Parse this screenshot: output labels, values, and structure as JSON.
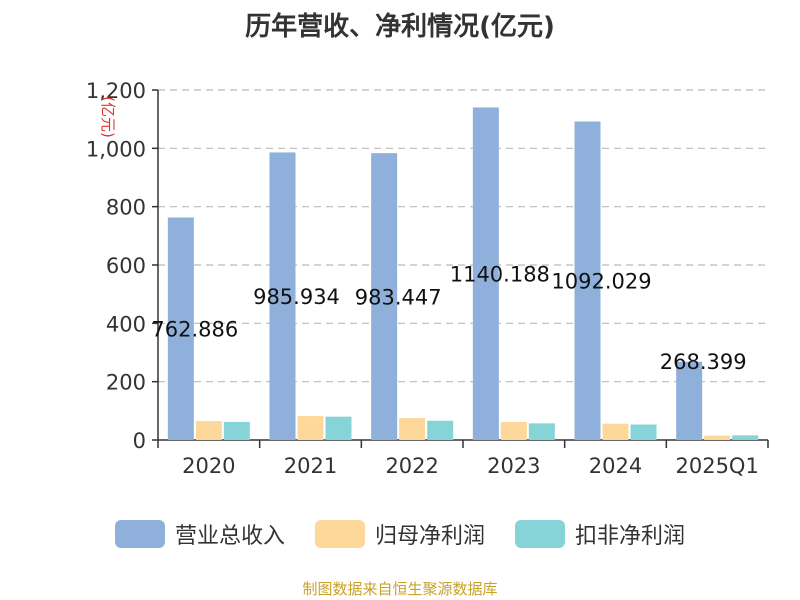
{
  "title": "历年营收、净利情况(亿元)",
  "source_note": "制图数据来自恒生聚源数据库",
  "colors": {
    "revenue": "#8eb0db",
    "net_profit_parent": "#fdd89a",
    "deducted_net_profit": "#86d4d8",
    "grid": "#bbbbbb",
    "axis": "#333333",
    "unit_label": "#e03030"
  },
  "chart_data": {
    "type": "bar",
    "title": "历年营收、净利情况(亿元)",
    "ylabel": "(亿元)",
    "xlabel": "",
    "ylim": [
      0,
      1200
    ],
    "yticks": [
      0,
      200,
      400,
      600,
      800,
      1000,
      1200
    ],
    "ytick_labels": [
      "0",
      "200",
      "400",
      "600",
      "800",
      "1,000",
      "1,200"
    ],
    "grid": true,
    "legend_position": "bottom",
    "categories": [
      "2020",
      "2021",
      "2022",
      "2023",
      "2024",
      "2025Q1"
    ],
    "series": [
      {
        "name": "营业总收入",
        "values": [
          762.886,
          985.934,
          983.447,
          1140.188,
          1092.029,
          268.399
        ],
        "labels": [
          "762.886",
          "985.934",
          "983.447",
          "1140.188",
          "1092.029",
          "268.399"
        ]
      },
      {
        "name": "归母净利润",
        "values": [
          65,
          82,
          75,
          62,
          56,
          15
        ]
      },
      {
        "name": "扣非净利润",
        "values": [
          62,
          80,
          66,
          57,
          53,
          16
        ]
      }
    ]
  }
}
